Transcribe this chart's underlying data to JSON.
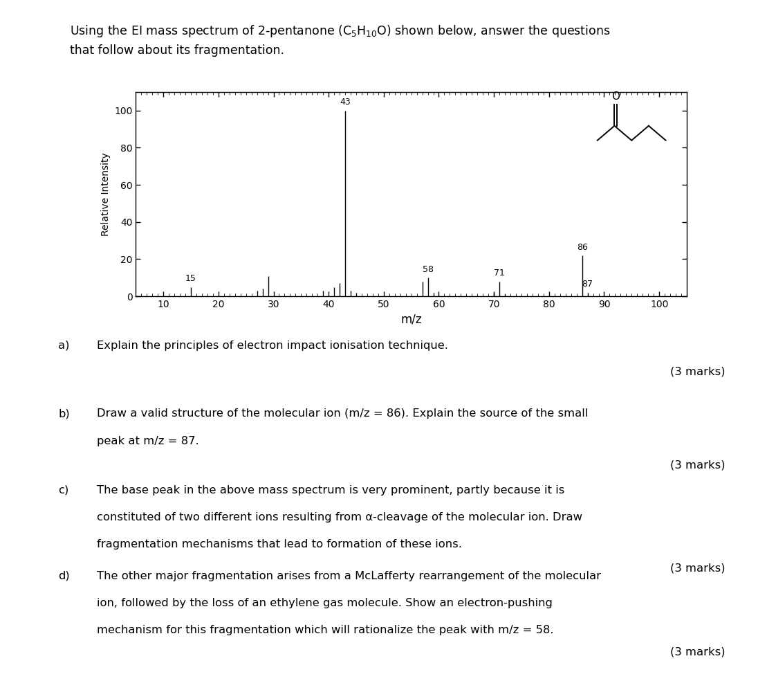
{
  "ylabel": "Relative Intensity",
  "xlabel": "m/z",
  "xlim": [
    5,
    105
  ],
  "ylim": [
    0,
    110
  ],
  "yticks": [
    0,
    20,
    40,
    60,
    80,
    100
  ],
  "xticks": [
    10,
    20,
    30,
    40,
    50,
    60,
    70,
    80,
    90,
    100
  ],
  "peaks": {
    "15": 5,
    "27": 3,
    "28": 4,
    "29": 11,
    "39": 3,
    "41": 5,
    "42": 7,
    "43": 100,
    "44": 3,
    "45": 2,
    "57": 8,
    "58": 10,
    "59": 2,
    "70": 2,
    "71": 8,
    "72": 1,
    "86": 22,
    "87": 2
  },
  "labeled_peaks": {
    "15": 5,
    "43": 100,
    "58": 10,
    "71": 8,
    "86": 22,
    "87": 2
  },
  "background_color": "#ffffff",
  "bar_color": "#000000",
  "title1": "Using the EI mass spectrum of 2-pentanone (C",
  "title1_sub1": "5",
  "title1_mid": "H",
  "title1_sub2": "10",
  "title1_end": "O) shown below, answer the questions",
  "title2": "that follow about its fragmentation.",
  "q_a_label": "a)",
  "q_a_text": "Explain the principles of electron impact ionisation technique.",
  "q_a_marks": "(3 marks)",
  "q_b_label": "b)",
  "q_b_text1": "Draw a valid structure of the molecular ion (",
  "q_b_italic1": "m/z",
  "q_b_text2": " = 86). Explain the source of the small",
  "q_b_text3": "peak at ",
  "q_b_italic2": "m/z",
  "q_b_text4": " = 87.",
  "q_b_marks": "(3 marks)",
  "q_c_label": "c)",
  "q_c_text1": "The base peak in the above mass spectrum is very prominent, partly because it is",
  "q_c_text2": "constituted of two different ions resulting from α-cleavage of the molecular ion. Draw",
  "q_c_text3": "fragmentation mechanisms that lead to formation of these ions.",
  "q_c_marks": "(3 marks)",
  "q_d_label": "d)",
  "q_d_text1": "The other major fragmentation arises from a McLafferty rearrangement of the molecular",
  "q_d_text2": "ion, followed by the loss of an ethylene gas molecule. Show an electron-pushing",
  "q_d_text3": "mechanism for this fragmentation which will rationalize the peak with ",
  "q_d_italic": "m/z",
  "q_d_text4": " = 58.",
  "q_d_marks": "(3 marks)"
}
